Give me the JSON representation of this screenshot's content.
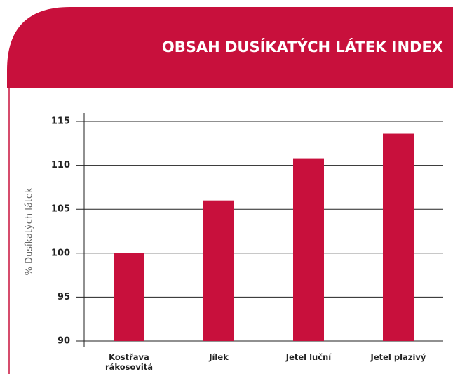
{
  "chart_data": {
    "type": "bar",
    "title": "OBSAH DUSÍKATÝCH LÁTEK INDEX",
    "y_label": "% Dusíkatých látek",
    "categories": [
      "Kostřava rákosovitá",
      "Jílek",
      "Jetel luční",
      "Jetel plazivý"
    ],
    "values": [
      100,
      106,
      110.8,
      113.6
    ],
    "color": "#c8103c",
    "ylim": [
      90,
      115
    ],
    "yticks": [
      90,
      95,
      100,
      105,
      110,
      115
    ],
    "grid": true
  }
}
